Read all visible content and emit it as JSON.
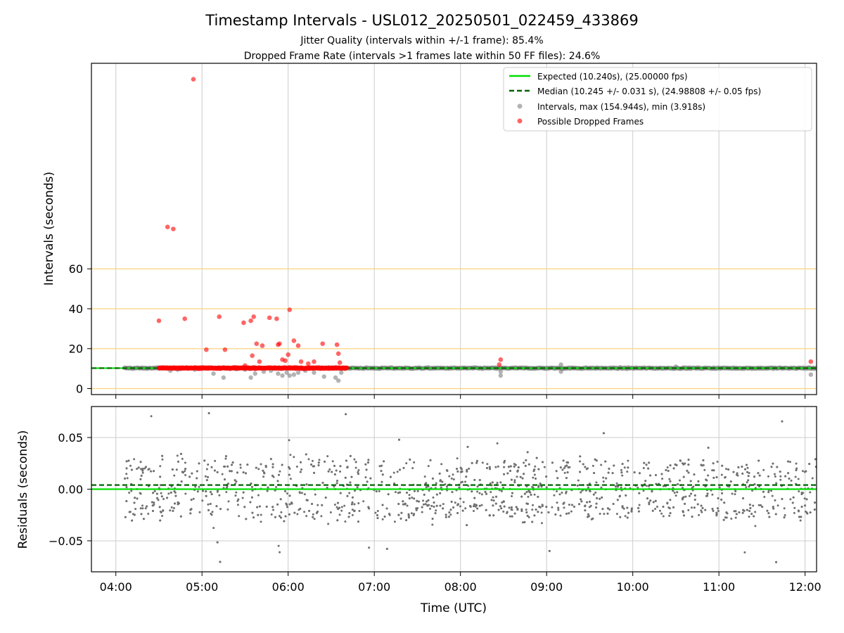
{
  "figure": {
    "title": "Timestamp Intervals - USL012_20250501_022459_433869",
    "subtitle_1": "Jitter Quality (intervals within +/-1 frame): 85.4%",
    "subtitle_2": "Dropped Frame Rate (intervals >1 frames late within 50 FF files): 24.6%"
  },
  "colors": {
    "expected": "#00e000",
    "median": "#006400",
    "intervals": "#808080",
    "dropped": "#ff0000",
    "threshold_lines": "#ffd27f",
    "grid": "#cccccc",
    "residuals": "#707070"
  },
  "chart_data": [
    {
      "type": "scatter",
      "panel": "intervals",
      "ylabel": "Intervals (seconds)",
      "xlim": [
        "03:43",
        "12:08"
      ],
      "ylim": [
        -3,
        163
      ],
      "yticks": [
        0,
        20,
        40,
        60
      ],
      "grid": true,
      "legend_position": "top-right",
      "horizontal_lines": [
        0,
        20,
        40,
        60
      ],
      "expected_value": 10.24,
      "median_value": 10.245,
      "series": [
        {
          "name": "Expected (10.240s), (25.00000 fps)",
          "kind": "line",
          "value": 10.24
        },
        {
          "name": "Median (10.245 +/- 0.031 s), (24.98808 +/- 0.05 fps)",
          "kind": "dashed-line",
          "value": 10.245
        },
        {
          "name": "Intervals, max (154.944s), min (3.918s)",
          "kind": "scatter",
          "points": [
            [
              "04:38",
              9.0
            ],
            [
              "04:43",
              9.5
            ],
            [
              "04:55",
              9.5
            ],
            [
              "05:08",
              7.5
            ],
            [
              "05:15",
              5.5
            ],
            [
              "05:30",
              9.5
            ],
            [
              "05:34",
              5.5
            ],
            [
              "05:37",
              7.5
            ],
            [
              "05:43",
              8.5
            ],
            [
              "05:48",
              9.0
            ],
            [
              "05:53",
              7.5
            ],
            [
              "05:56",
              6.5
            ],
            [
              "05:59",
              8.0
            ],
            [
              "06:01",
              6.5
            ],
            [
              "06:04",
              7.0
            ],
            [
              "06:07",
              8.0
            ],
            [
              "06:12",
              9.0
            ],
            [
              "06:18",
              8.0
            ],
            [
              "06:25",
              6.0
            ],
            [
              "06:33",
              5.5
            ],
            [
              "06:35",
              4.0
            ],
            [
              "06:37",
              8.0
            ],
            [
              "08:28",
              6.5
            ],
            [
              "08:28",
              8.5
            ],
            [
              "09:10",
              8.5
            ],
            [
              "09:10",
              12.0
            ],
            [
              "10:30",
              11.0
            ],
            [
              "12:04",
              7.0
            ]
          ]
        },
        {
          "name": "Possible Dropped Frames",
          "kind": "scatter",
          "points": [
            [
              "04:54",
              155.0
            ],
            [
              "04:36",
              81.0
            ],
            [
              "04:40",
              80.0
            ],
            [
              "04:30",
              34.0
            ],
            [
              "04:48",
              35.0
            ],
            [
              "05:12",
              36.0
            ],
            [
              "05:16",
              19.5
            ],
            [
              "05:03",
              19.5
            ],
            [
              "05:29",
              33.0
            ],
            [
              "05:34",
              34.0
            ],
            [
              "05:36",
              36.0
            ],
            [
              "05:38",
              22.5
            ],
            [
              "05:42",
              21.5
            ],
            [
              "05:47",
              35.5
            ],
            [
              "05:52",
              35.0
            ],
            [
              "05:53",
              22.0
            ],
            [
              "05:54",
              22.5
            ],
            [
              "05:56",
              14.5
            ],
            [
              "06:00",
              17.0
            ],
            [
              "06:01",
              39.5
            ],
            [
              "06:04",
              24.0
            ],
            [
              "06:07",
              21.5
            ],
            [
              "06:09",
              13.5
            ],
            [
              "06:14",
              12.5
            ],
            [
              "06:18",
              13.5
            ],
            [
              "06:24",
              22.5
            ],
            [
              "06:34",
              22.0
            ],
            [
              "06:35",
              17.5
            ],
            [
              "06:36",
              13.0
            ],
            [
              "05:30",
              11.5
            ],
            [
              "05:35",
              16.5
            ],
            [
              "05:40",
              13.5
            ],
            [
              "05:58",
              14.0
            ],
            [
              "08:28",
              14.5
            ],
            [
              "08:27",
              12.0
            ],
            [
              "12:04",
              13.5
            ]
          ],
          "dense_range": [
            "04:30",
            "06:41"
          ],
          "dense_value": 10.3
        }
      ]
    },
    {
      "type": "scatter",
      "panel": "residuals",
      "xlabel": "Time (UTC)",
      "ylabel": "Residuals (seconds)",
      "xlim": [
        "03:43",
        "12:08"
      ],
      "ylim": [
        -0.08,
        0.08
      ],
      "yticks": [
        -0.05,
        0.0,
        0.05
      ],
      "ytick_labels": [
        "−0.05",
        "0.00",
        "0.05"
      ],
      "xticks": [
        "04:00",
        "05:00",
        "06:00",
        "07:00",
        "08:00",
        "09:00",
        "10:00",
        "11:00",
        "12:00"
      ],
      "grid": true,
      "expected_residual": 0.0,
      "median_residual": 0.004,
      "points_range": [
        "04:06",
        "12:08"
      ],
      "points_count": 1900,
      "levels": [
        -0.02,
        0.0,
        0.02
      ],
      "spread": 0.015
    }
  ]
}
